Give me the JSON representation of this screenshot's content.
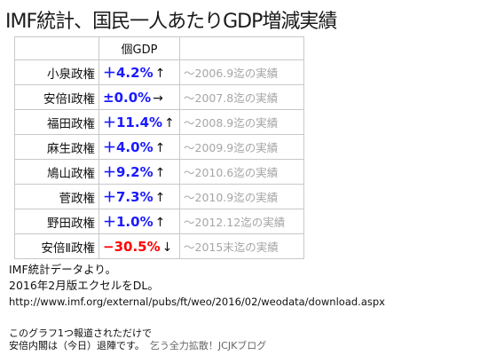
{
  "title": "IMF統計、国民一人あたりGDP増減実績",
  "table": {
    "header": "個GDP",
    "rows": [
      {
        "name": "小泉政権",
        "value": "＋4.2%",
        "arrow": "↑",
        "color": "#1a1aff",
        "note": "〜2006.9迄の実績"
      },
      {
        "name": "安倍Ⅰ政権",
        "value": "±0.0%",
        "arrow": "→",
        "color": "#1a1aff",
        "note": "〜2007.8迄の実績"
      },
      {
        "name": "福田政権",
        "value": "＋11.4%",
        "arrow": "↑",
        "color": "#1a1aff",
        "note": "〜2008.9迄の実績"
      },
      {
        "name": "麻生政権",
        "value": "＋4.0%",
        "arrow": "↑",
        "color": "#1a1aff",
        "note": "〜2009.9迄の実績"
      },
      {
        "name": "鳩山政権",
        "value": "＋9.2%",
        "arrow": "↑",
        "color": "#1a1aff",
        "note": "〜2010.6迄の実績"
      },
      {
        "name": "菅政権",
        "value": "＋7.3%",
        "arrow": "↑",
        "color": "#1a1aff",
        "note": "〜2010.9迄の実績"
      },
      {
        "name": "野田政権",
        "value": "＋1.0%",
        "arrow": "↑",
        "color": "#1a1aff",
        "note": "〜2012.12迄の実績"
      },
      {
        "name": "安倍Ⅱ政権",
        "value": "−30.5%",
        "arrow": "↓",
        "color": "#ff0000",
        "note": "〜2015末迄の実績"
      }
    ]
  },
  "footer": {
    "line1": "IMF統計データより。",
    "line2": "2016年2月版エクセルをDL。",
    "url": "http://www.imf.org/external/pubs/ft/weo/2016/02/weodata/download.aspx",
    "line4": "このグラフ1つ報道されただけで",
    "line5": "安倍内閣は（今日）退陣です。",
    "credit": "乞う全力拡散！JCJKブログ"
  }
}
